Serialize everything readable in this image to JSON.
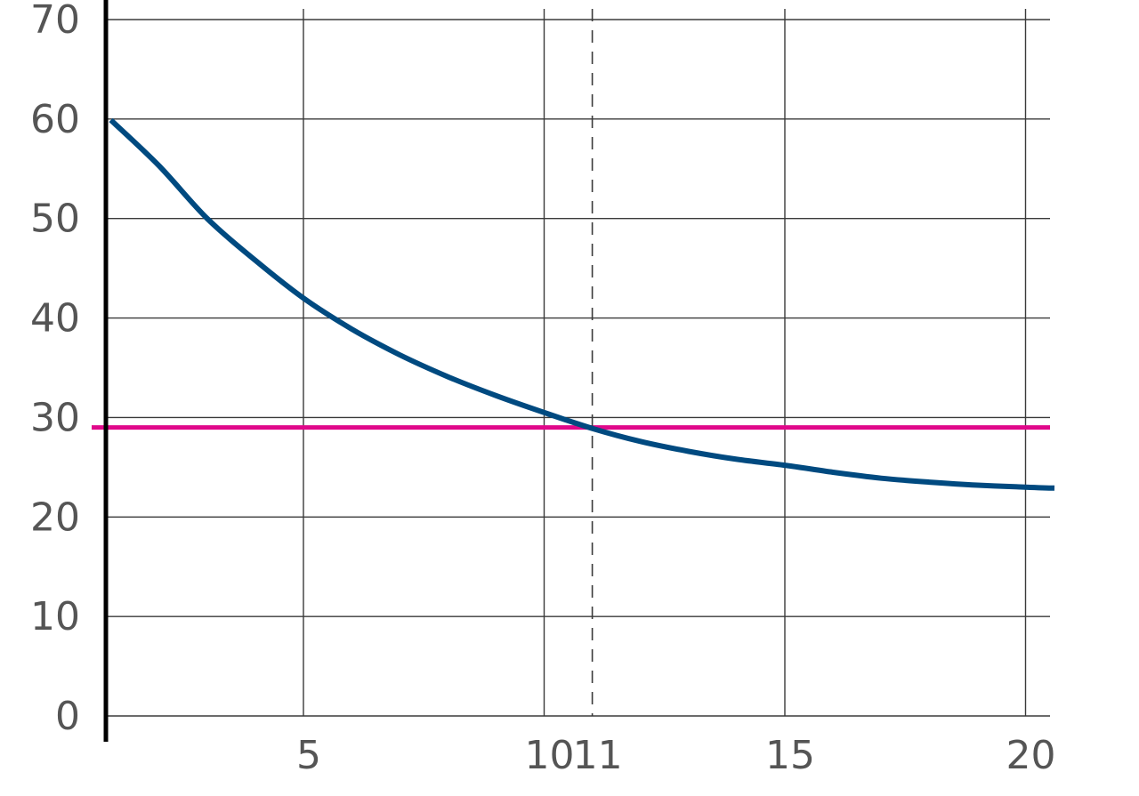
{
  "chart_data": {
    "type": "line",
    "xlim": [
      -1,
      20.6
    ],
    "ylim": [
      0,
      70
    ],
    "x_ticks": [
      5,
      10,
      11,
      15,
      20
    ],
    "x_tick_labels": [
      "5",
      "10",
      "11",
      "15",
      "20"
    ],
    "x_gridlines": [
      5,
      10,
      15,
      20
    ],
    "y_ticks": [
      0,
      10,
      20,
      30,
      40,
      50,
      60,
      70
    ],
    "y_tick_labels": [
      "0",
      "10",
      "20",
      "30",
      "40",
      "50",
      "60",
      "70"
    ],
    "grid": true,
    "series": [
      {
        "kind": "curve",
        "color": "#004a80",
        "x": [
          1,
          2,
          3,
          4,
          5,
          6,
          7,
          8,
          9,
          10,
          11,
          12,
          13,
          14,
          15,
          16,
          17,
          18,
          19,
          20,
          20.6
        ],
        "y": [
          59.9,
          55.3,
          50.0,
          45.8,
          42.0,
          38.9,
          36.3,
          34.1,
          32.2,
          30.5,
          28.9,
          27.6,
          26.6,
          25.8,
          25.2,
          24.5,
          23.9,
          23.5,
          23.2,
          23.0,
          22.9
        ]
      },
      {
        "kind": "horizontal-line",
        "color": "#e0088a",
        "y": 29
      },
      {
        "kind": "vertical-dashed-line",
        "color": "#3a3a3a",
        "x": 11
      }
    ]
  }
}
